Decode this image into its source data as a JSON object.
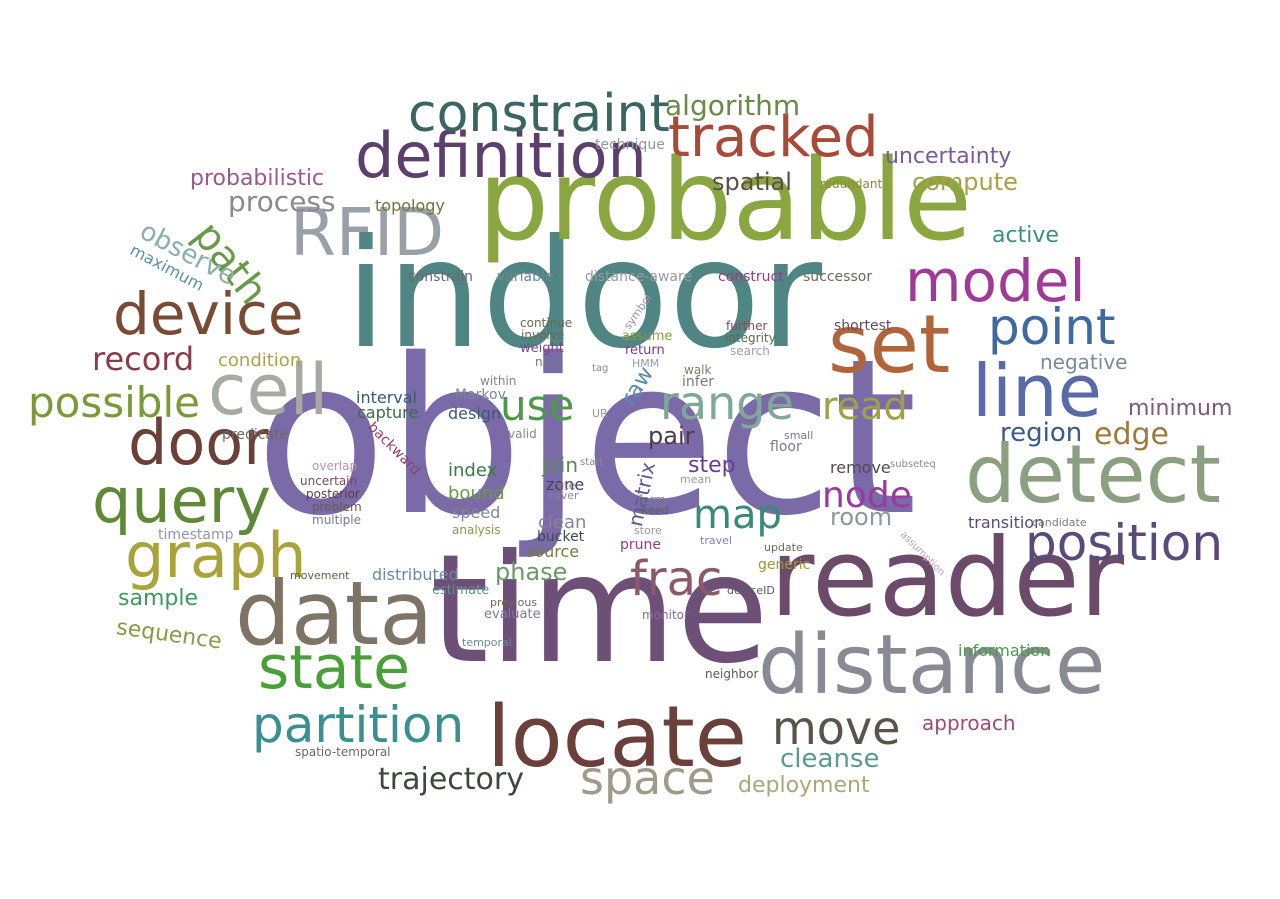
{
  "words": [
    {
      "text": "object",
      "color": "#7a6aa8"
    },
    {
      "text": "indoor",
      "color": "#4f8582"
    },
    {
      "text": "time",
      "color": "#6e4f78"
    },
    {
      "text": "probable",
      "color": "#8aa640"
    },
    {
      "text": "reader",
      "color": "#6b4a6a"
    },
    {
      "text": "locate",
      "color": "#6b3f3a"
    },
    {
      "text": "data",
      "color": "#7d7466"
    },
    {
      "text": "distance",
      "color": "#8a8a95"
    },
    {
      "text": "detect",
      "color": "#8aa080"
    },
    {
      "text": "cell",
      "color": "#a6aaa0"
    },
    {
      "text": "set",
      "color": "#b0643a"
    },
    {
      "text": "line",
      "color": "#5a6aa8"
    },
    {
      "text": "definition",
      "color": "#5d3f6e"
    },
    {
      "text": "RFID",
      "color": "#9aa0a8"
    },
    {
      "text": "constraint",
      "color": "#3a6560"
    },
    {
      "text": "tracked",
      "color": "#a84a3a"
    },
    {
      "text": "model",
      "color": "#a03a98"
    },
    {
      "text": "point",
      "color": "#3f6aa0"
    },
    {
      "text": "device",
      "color": "#7a4a35"
    },
    {
      "text": "door",
      "color": "#6b4038"
    },
    {
      "text": "query",
      "color": "#5e8a38"
    },
    {
      "text": "graph",
      "color": "#a8a43a"
    },
    {
      "text": "state",
      "color": "#4aa038"
    },
    {
      "text": "partition",
      "color": "#3a9090"
    },
    {
      "text": "position",
      "color": "#5a4a78"
    },
    {
      "text": "range",
      "color": "#80a898"
    },
    {
      "text": "move",
      "color": "#5a5448"
    },
    {
      "text": "space",
      "color": "#a09a88"
    },
    {
      "text": "frac",
      "color": "#8a5a6a"
    },
    {
      "text": "possible",
      "color": "#7a9a38"
    },
    {
      "text": "use",
      "color": "#4a9a4a"
    },
    {
      "text": "node",
      "color": "#9a3aa0"
    },
    {
      "text": "map",
      "color": "#3a8a7a"
    },
    {
      "text": "read",
      "color": "#a0a048"
    },
    {
      "text": "record",
      "color": "#8a3a48"
    },
    {
      "text": "path",
      "color": "#6a9a48"
    },
    {
      "text": "process",
      "color": "#8a8a90"
    },
    {
      "text": "algorithm",
      "color": "#6a8a48"
    },
    {
      "text": "probabilistic",
      "color": "#9a5a8a"
    },
    {
      "text": "uncertainty",
      "color": "#7a5a9a"
    },
    {
      "text": "spatial",
      "color": "#5a5048"
    },
    {
      "text": "compute",
      "color": "#a8a048"
    },
    {
      "text": "active",
      "color": "#3a9080"
    },
    {
      "text": "observe",
      "color": "#8ab0a8"
    },
    {
      "text": "maximum",
      "color": "#5a90a8"
    },
    {
      "text": "topology",
      "color": "#6a7a38"
    },
    {
      "text": "edge",
      "color": "#a07a3a"
    },
    {
      "text": "region",
      "color": "#3a5a90"
    },
    {
      "text": "minimum",
      "color": "#7a5a80"
    },
    {
      "text": "negative",
      "color": "#7a8a9a"
    },
    {
      "text": "room",
      "color": "#8a9a98"
    },
    {
      "text": "cleanse",
      "color": "#5a9a90"
    },
    {
      "text": "trajectory",
      "color": "#3a4a38"
    },
    {
      "text": "deployment",
      "color": "#a8a878"
    },
    {
      "text": "approach",
      "color": "#a04a7a"
    },
    {
      "text": "sequence",
      "color": "#8a9a48"
    },
    {
      "text": "sample",
      "color": "#3a9a60"
    },
    {
      "text": "phase",
      "color": "#6a9a68"
    },
    {
      "text": "join",
      "color": "#5a8a58"
    },
    {
      "text": "index",
      "color": "#3a7a48"
    },
    {
      "text": "bound",
      "color": "#6a9a48"
    },
    {
      "text": "speed",
      "color": "#7a8a98"
    },
    {
      "text": "zone",
      "color": "#4a3a68"
    },
    {
      "text": "clean",
      "color": "#8a80a0"
    },
    {
      "text": "source",
      "color": "#7a7a40"
    },
    {
      "text": "bucket",
      "color": "#3a4a58"
    },
    {
      "text": "pair",
      "color": "#4a3a48"
    },
    {
      "text": "step",
      "color": "#6a3a9a"
    },
    {
      "text": "matrix",
      "color": "#5a5a90"
    },
    {
      "text": "raw",
      "color": "#5a8ab0"
    },
    {
      "text": "condition",
      "color": "#b0a048"
    },
    {
      "text": "interval",
      "color": "#3a5a70"
    },
    {
      "text": "capture",
      "color": "#3a6a48"
    },
    {
      "text": "design",
      "color": "#3a5a70"
    },
    {
      "text": "remove",
      "color": "#5a4a48"
    },
    {
      "text": "transition",
      "color": "#5a4a78"
    },
    {
      "text": "distributed",
      "color": "#6a8aa0"
    },
    {
      "text": "information",
      "color": "#4a9a4a"
    },
    {
      "text": "construct",
      "color": "#9a3a7a"
    },
    {
      "text": "successor",
      "color": "#6a6a58"
    },
    {
      "text": "distance-aware",
      "color": "#9a9aa0"
    },
    {
      "text": "variable",
      "color": "#6a8a98"
    },
    {
      "text": "constrain",
      "color": "#6a6a6a"
    },
    {
      "text": "technique",
      "color": "#8a9aa0"
    },
    {
      "text": "redundant",
      "color": "#8a8a38"
    },
    {
      "text": "shortest",
      "color": "#6a4a58"
    },
    {
      "text": "further",
      "color": "#8a4a5a"
    },
    {
      "text": "integrity",
      "color": "#5a6a4a"
    },
    {
      "text": "search",
      "color": "#a0a0a8"
    },
    {
      "text": "symbol",
      "color": "#a090b0"
    },
    {
      "text": "assume",
      "color": "#8a9a48"
    },
    {
      "text": "return",
      "color": "#7a3a88"
    },
    {
      "text": "HMM",
      "color": "#9a9aa8"
    },
    {
      "text": "continue",
      "color": "#6a6a48"
    },
    {
      "text": "involve",
      "color": "#6a6a58"
    },
    {
      "text": "weight",
      "color": "#7a4a88"
    },
    {
      "text": "next",
      "color": "#6a7a88"
    },
    {
      "text": "tag",
      "color": "#8a8a90"
    },
    {
      "text": "walk",
      "color": "#8a7a60"
    },
    {
      "text": "infer",
      "color": "#7a7a80"
    },
    {
      "text": "within",
      "color": "#7a8a90"
    },
    {
      "text": "Markov",
      "color": "#7a8a98"
    },
    {
      "text": "predicate",
      "color": "#6a6a58"
    },
    {
      "text": "backward",
      "color": "#9a3a6a"
    },
    {
      "text": "overlap",
      "color": "#c090b0"
    },
    {
      "text": "uncertain",
      "color": "#7a4a58"
    },
    {
      "text": "posterior",
      "color": "#5a3a48"
    },
    {
      "text": "problem",
      "color": "#6a5a48"
    },
    {
      "text": "multiple",
      "color": "#7a7a88"
    },
    {
      "text": "timestamp",
      "color": "#8a9aa8"
    },
    {
      "text": "movement",
      "color": "#6a5a48"
    },
    {
      "text": "valid",
      "color": "#8a8a88"
    },
    {
      "text": "start",
      "color": "#8a8a90"
    },
    {
      "text": "UR",
      "color": "#9a9aa8"
    },
    {
      "text": "rate",
      "color": "#7a7a88"
    },
    {
      "text": "cover",
      "color": "#8a8a90"
    },
    {
      "text": "analysis",
      "color": "#8a9a48"
    },
    {
      "text": "small",
      "color": "#7a7a88"
    },
    {
      "text": "floor",
      "color": "#7a7a90"
    },
    {
      "text": "subseteq",
      "color": "#8a8a98"
    },
    {
      "text": "mean",
      "color": "#9a9aa8"
    },
    {
      "text": "form",
      "color": "#7a7a88"
    },
    {
      "text": "need",
      "color": "#5a5a68"
    },
    {
      "text": "store",
      "color": "#9a9aa8"
    },
    {
      "text": "prune",
      "color": "#9a3a7a"
    },
    {
      "text": "travel",
      "color": "#8a7ab0"
    },
    {
      "text": "update",
      "color": "#6a6a58"
    },
    {
      "text": "generic",
      "color": "#9a9a38"
    },
    {
      "text": "deviceID",
      "color": "#5a5a68"
    },
    {
      "text": "monitor",
      "color": "#8a6a98"
    },
    {
      "text": "estimate",
      "color": "#5a9a88"
    },
    {
      "text": "previous",
      "color": "#6a6a58"
    },
    {
      "text": "evaluate",
      "color": "#7a7aa0"
    },
    {
      "text": "temporal",
      "color": "#6a8a98"
    },
    {
      "text": "neighbor",
      "color": "#5a5a58"
    },
    {
      "text": "spatio-temporal",
      "color": "#6a6a6a"
    },
    {
      "text": "candidate",
      "color": "#7a7a88"
    },
    {
      "text": "assumption",
      "color": "#c0a0b0"
    }
  ]
}
